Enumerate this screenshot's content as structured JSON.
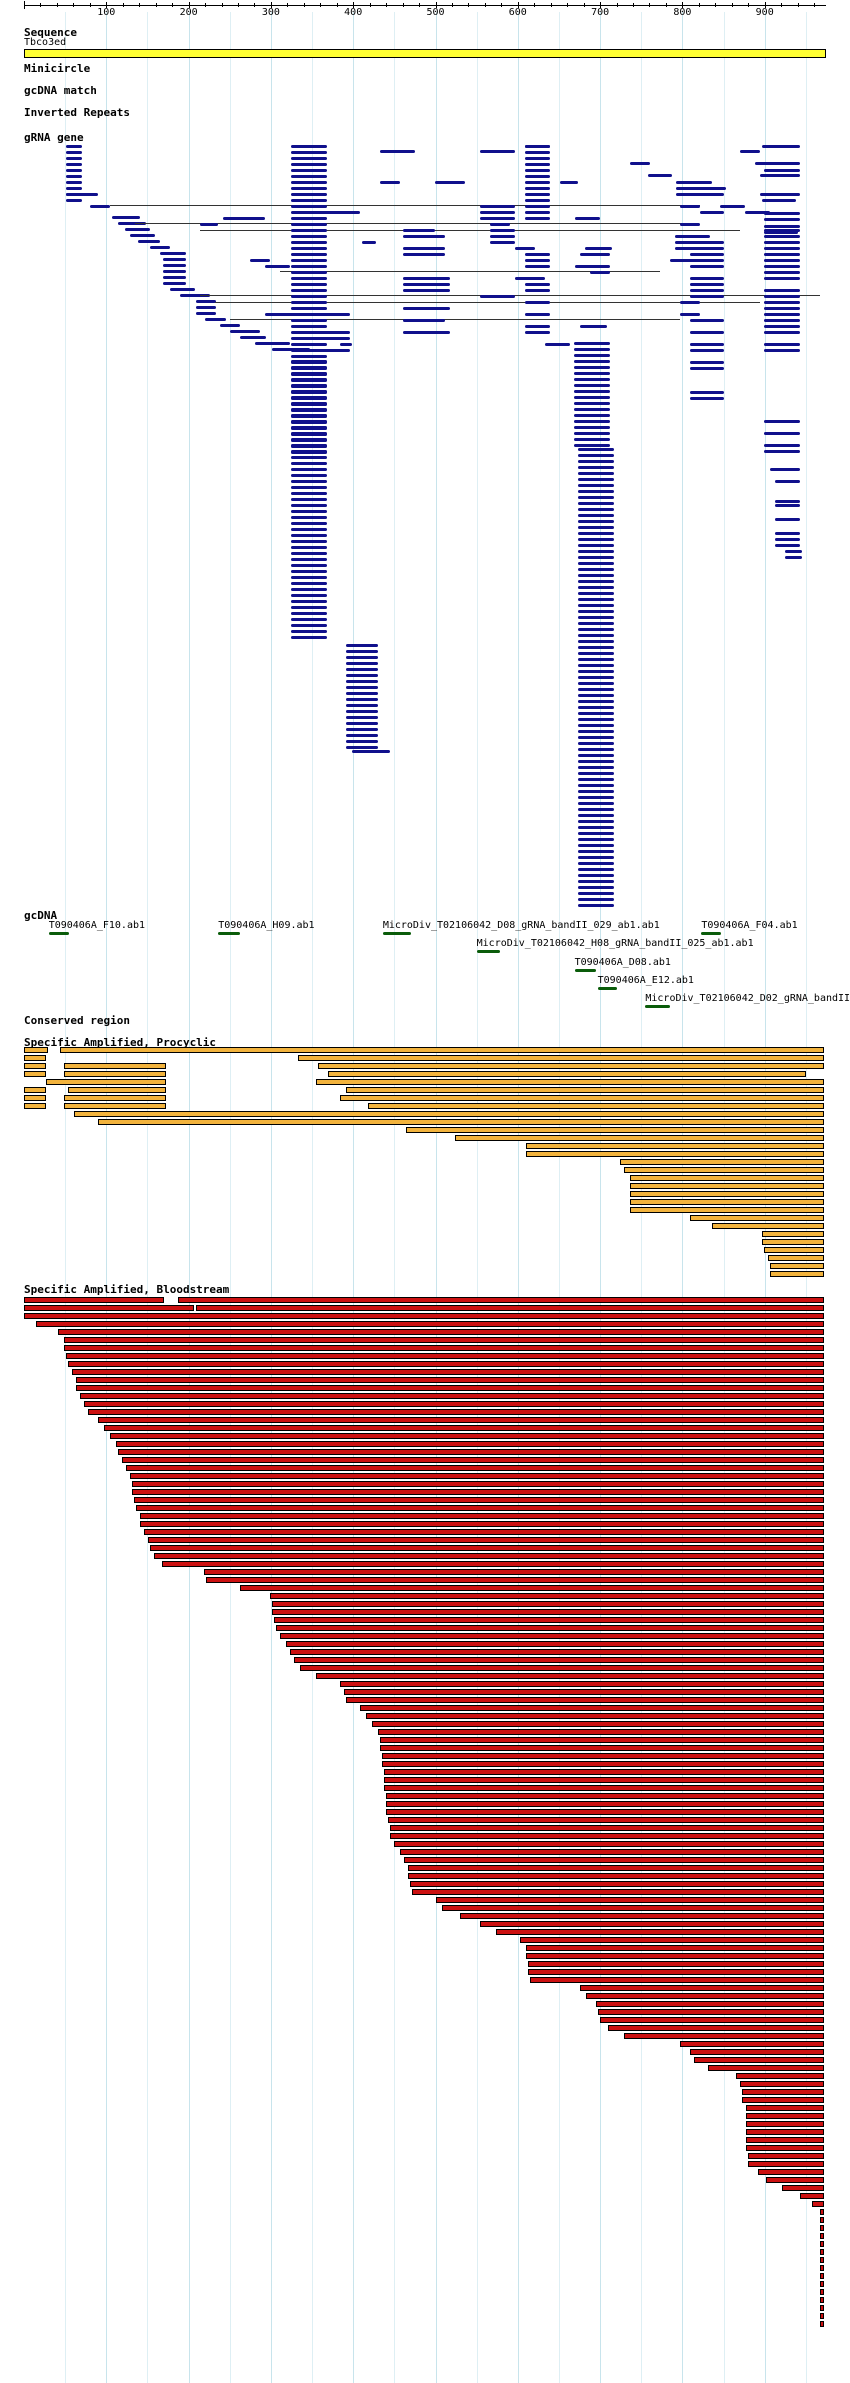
{
  "colors": {
    "grid": "#c8e4ec",
    "sequence_fill": "#ffff33",
    "grna_gene": "#10108c",
    "gcdna": "#0a5c0a",
    "procyclic": "#f2b33d",
    "bloodstream": "#cc1111"
  },
  "ruler": {
    "labels": [
      "100",
      "200",
      "300",
      "400",
      "500",
      "600",
      "700",
      "800",
      "900"
    ]
  },
  "sequence": {
    "label": "Sequence",
    "name": "Tbco3ed"
  },
  "tracks": {
    "minicircle": "Minicircle",
    "gcdna_match": "gcDNA match",
    "inverted_repeats": "Inverted Repeats",
    "grna_gene": "gRNA gene",
    "gcdna": "gcDNA",
    "conserved_region": "Conserved region",
    "procyclic": "Specific Amplified, Procyclic",
    "bloodstream": "Specific Amplified, Bloodstream"
  },
  "gcdna_features": [
    {
      "label": "T090406A_F10.ab1",
      "start": 30,
      "end": 55
    },
    {
      "label": "T090406A_H09.ab1",
      "start": 236,
      "end": 262
    },
    {
      "label": "MicroDiv_T02106042_D08_gRNA_bandII_029_ab1.ab1",
      "start": 436,
      "end": 470
    },
    {
      "label": "T090406A_F04.ab1",
      "start": 823,
      "end": 847
    },
    {
      "label": "MicroDiv_T02106042_H08_gRNA_bandII_025_ab1.ab1",
      "start": 550,
      "end": 578
    },
    {
      "label": "T090406A_D08.ab1",
      "start": 669,
      "end": 695
    },
    {
      "label": "T090406A_E12.ab1",
      "start": 697,
      "end": 721
    },
    {
      "label": "MicroDiv_T02106042_D02_gRNA_bandII",
      "start": 755,
      "end": 785
    }
  ]
}
